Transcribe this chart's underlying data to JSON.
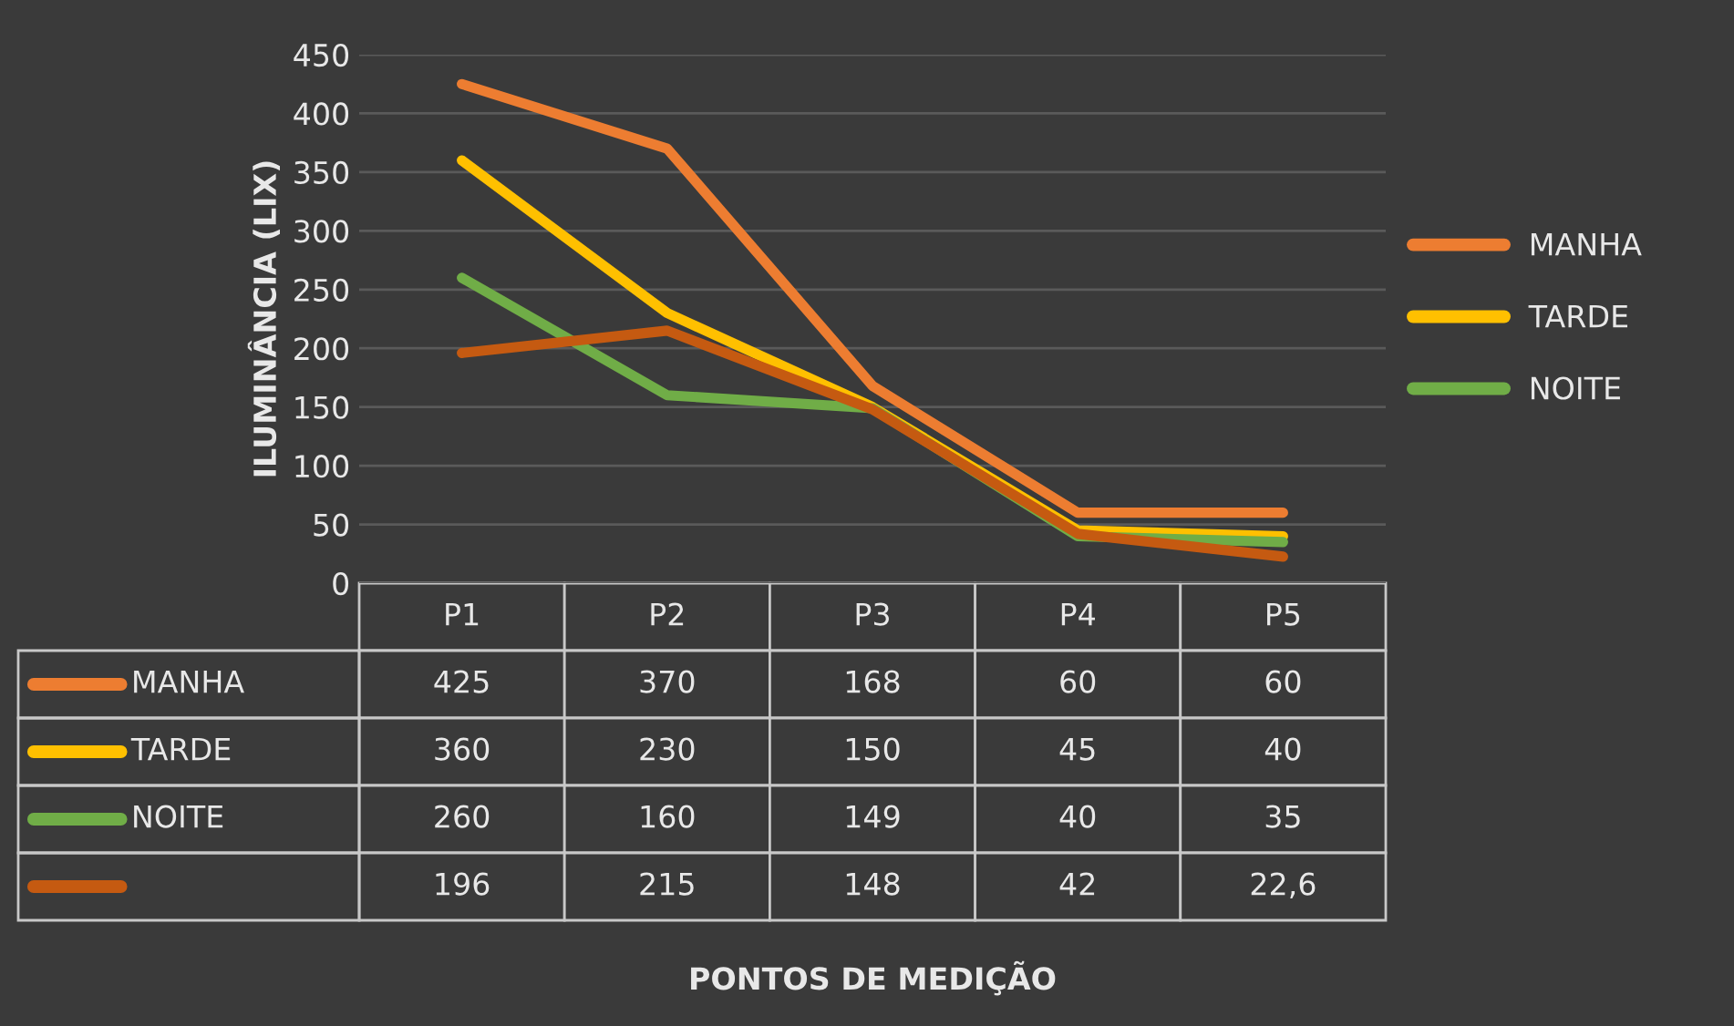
{
  "chart_data": {
    "type": "line",
    "annotations": [
      "PONTOS DE MEDIÇÃO"
    ],
    "ylabel": "ILUMINÂNCIA (LIX)",
    "categories": [
      "P1",
      "P2",
      "P3",
      "P4",
      "P5"
    ],
    "series": [
      {
        "name": "MANHA",
        "color": "#ed7d31",
        "values": [
          425,
          370,
          168,
          60,
          60
        ],
        "value_labels": [
          "425",
          "370",
          "168",
          "60",
          "60"
        ]
      },
      {
        "name": "TARDE",
        "color": "#ffc000",
        "values": [
          360,
          230,
          150,
          45,
          40
        ],
        "value_labels": [
          "360",
          "230",
          "150",
          "45",
          "40"
        ]
      },
      {
        "name": "NOITE",
        "color": "#70ad47",
        "values": [
          260,
          160,
          149,
          40,
          35
        ],
        "value_labels": [
          "260",
          "160",
          "149",
          "40",
          "35"
        ]
      },
      {
        "color": "#c55a11",
        "values": [
          196,
          215,
          148,
          42,
          22.6
        ],
        "value_labels": [
          "196",
          "215",
          "148",
          "42",
          "22,6"
        ]
      }
    ],
    "ylim": [
      0,
      450
    ],
    "yticks": [
      0,
      50,
      100,
      150,
      200,
      250,
      300,
      350,
      400,
      450
    ],
    "grid": "y",
    "legend": "right",
    "tick_labels": "y",
    "marker": "none",
    "line_style": "solid"
  }
}
